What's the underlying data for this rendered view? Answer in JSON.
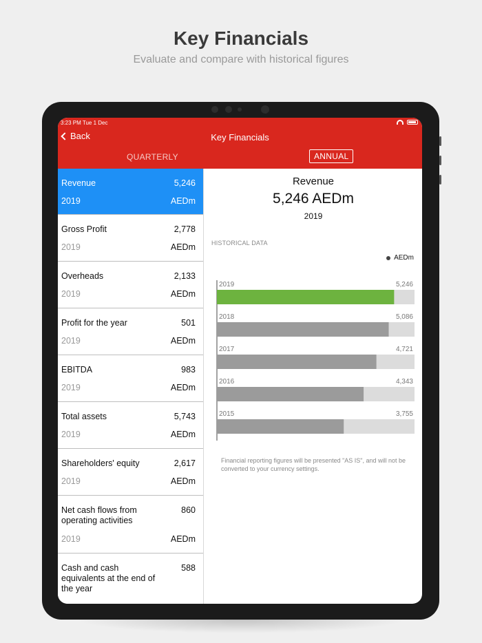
{
  "promo": {
    "title": "Key Financials",
    "subtitle": "Evaluate and compare with historical figures"
  },
  "status_bar": {
    "time": "3:23 PM   Tue 1 Dec"
  },
  "header": {
    "back_label": "Back",
    "title": "Key Financials",
    "tabs": [
      "QUARTERLY",
      "ANNUAL"
    ],
    "selected_tab": "ANNUAL"
  },
  "metrics": [
    {
      "name": "Revenue",
      "value": "5,246",
      "year": "2019",
      "unit": "AEDm",
      "selected": true
    },
    {
      "name": "Gross Profit",
      "value": "2,778",
      "year": "2019",
      "unit": "AEDm"
    },
    {
      "name": "Overheads",
      "value": "2,133",
      "year": "2019",
      "unit": "AEDm"
    },
    {
      "name": "Profit for the year",
      "value": "501",
      "year": "2019",
      "unit": "AEDm"
    },
    {
      "name": "EBITDA",
      "value": "983",
      "year": "2019",
      "unit": "AEDm"
    },
    {
      "name": "Total assets",
      "value": "5,743",
      "year": "2019",
      "unit": "AEDm"
    },
    {
      "name": "Shareholders' equity",
      "value": "2,617",
      "year": "2019",
      "unit": "AEDm"
    },
    {
      "name": "Net cash flows from operating activities",
      "value": "860",
      "year": "2019",
      "unit": "AEDm"
    },
    {
      "name": "Cash and cash equivalents at the end of the year",
      "value": "588",
      "year": "",
      "unit": ""
    }
  ],
  "detail": {
    "title": "Revenue",
    "value": "5,246 AEDm",
    "year": "2019",
    "historical_label": "HISTORICAL DATA",
    "legend": "AEDm",
    "footnote": "Financial reporting figures will be presented \"AS IS\", and will not be converted to your currency settings."
  },
  "chart_data": {
    "type": "bar",
    "orientation": "horizontal",
    "categories": [
      "2019",
      "2018",
      "2017",
      "2016",
      "2015"
    ],
    "values": [
      5246,
      5086,
      4721,
      4343,
      3755
    ],
    "labels": [
      "5,246",
      "5,086",
      "4,721",
      "4,343",
      "3,755"
    ],
    "xlim": [
      0,
      5850
    ],
    "highlight_color": "#6db33f",
    "bar_color": "#9b9b9b",
    "track_color": "#dcdcdc",
    "legend": "AEDm"
  }
}
